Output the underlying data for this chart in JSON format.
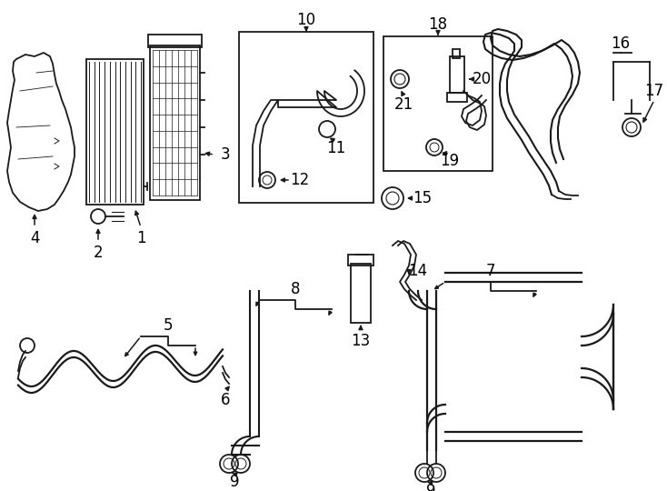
{
  "bg_color": "#ffffff",
  "line_color": "#1a1a1a",
  "lw": 1.3,
  "fig_w": 7.34,
  "fig_h": 5.4,
  "dpi": 100
}
